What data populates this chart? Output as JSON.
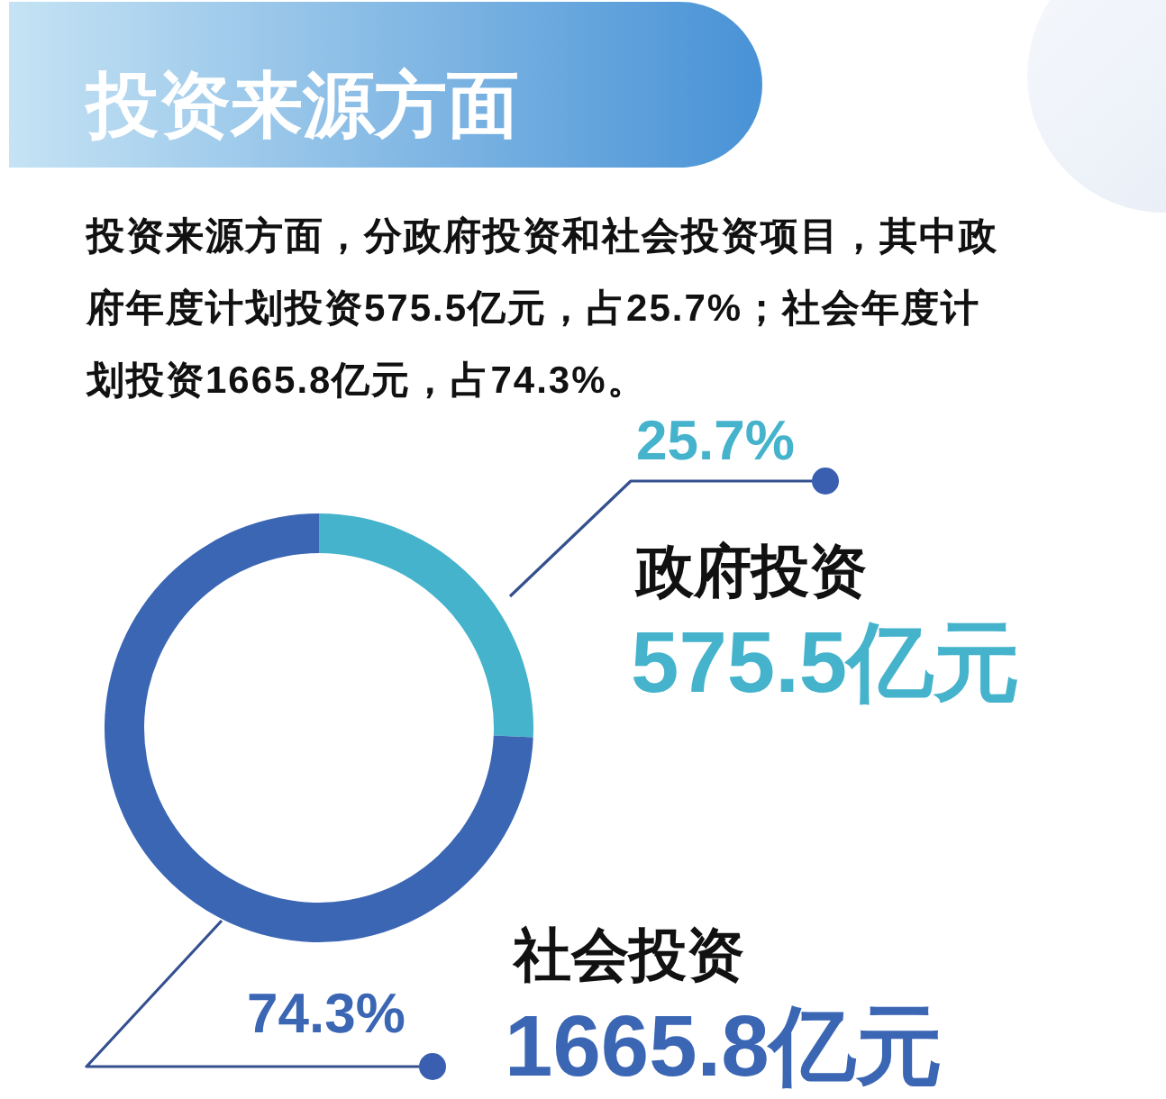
{
  "chart_data": {
    "type": "donut",
    "title": "投资来源方面",
    "categories": [
      "政府投资",
      "社会投资"
    ],
    "values": [
      25.7,
      74.3
    ],
    "colors": [
      "#45b3cc",
      "#3b66b4"
    ],
    "value_labels": [
      "25.7%",
      "74.3%"
    ],
    "annotations": [
      "投资来源方面，分政府投资和社会投资项目，其中政府年度计划投资575.5亿元，占25.7%；社会年度计划投资1665.8亿元，占74.3%。",
      "575.5亿元",
      "1665.8亿元"
    ]
  }
}
